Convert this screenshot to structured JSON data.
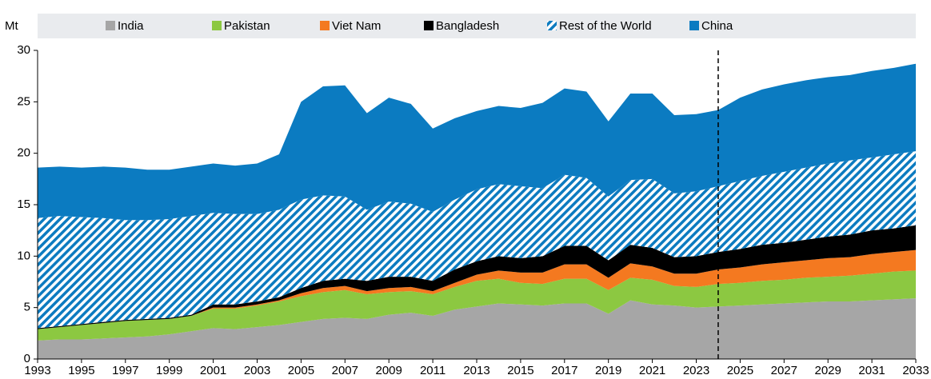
{
  "chart_data": {
    "type": "stacked_area",
    "y_label": "Mt",
    "x": [
      1993,
      1994,
      1995,
      1996,
      1997,
      1998,
      1999,
      2000,
      2001,
      2002,
      2003,
      2004,
      2005,
      2006,
      2007,
      2008,
      2009,
      2010,
      2011,
      2012,
      2013,
      2014,
      2015,
      2016,
      2017,
      2018,
      2019,
      2020,
      2021,
      2022,
      2023,
      2024,
      2025,
      2026,
      2027,
      2028,
      2029,
      2030,
      2031,
      2032,
      2033
    ],
    "xlim": [
      1993,
      2033
    ],
    "xticks": [
      1993,
      1995,
      1997,
      1999,
      2001,
      2003,
      2005,
      2007,
      2009,
      2011,
      2013,
      2015,
      2017,
      2019,
      2021,
      2023,
      2025,
      2027,
      2029,
      2031,
      2033
    ],
    "ylim": [
      0,
      30
    ],
    "yticks": [
      0,
      5,
      10,
      15,
      20,
      25,
      30
    ],
    "vline": 2024,
    "legend": "top",
    "series": [
      {
        "name": "India",
        "color": "#a6a6a6",
        "values": [
          1.8,
          1.9,
          1.9,
          2.0,
          2.1,
          2.2,
          2.4,
          2.7,
          3.0,
          2.9,
          3.1,
          3.3,
          3.6,
          3.9,
          4.0,
          3.9,
          4.3,
          4.5,
          4.2,
          4.8,
          5.1,
          5.4,
          5.3,
          5.2,
          5.4,
          5.4,
          4.4,
          5.7,
          5.3,
          5.2,
          5.0,
          5.1,
          5.2,
          5.3,
          5.4,
          5.5,
          5.6,
          5.6,
          5.7,
          5.8,
          5.9
        ]
      },
      {
        "name": "Pakistan",
        "color": "#8cc841",
        "values": [
          1.1,
          1.2,
          1.4,
          1.5,
          1.6,
          1.6,
          1.5,
          1.5,
          1.9,
          2.0,
          2.1,
          2.3,
          2.5,
          2.6,
          2.7,
          2.4,
          2.2,
          2.1,
          2.1,
          2.2,
          2.5,
          2.4,
          2.1,
          2.1,
          2.4,
          2.4,
          2.3,
          2.2,
          2.4,
          1.9,
          2.0,
          2.2,
          2.2,
          2.3,
          2.3,
          2.4,
          2.4,
          2.5,
          2.6,
          2.7,
          2.7
        ]
      },
      {
        "name": "Viet Nam",
        "color": "#f47920",
        "values": [
          0.0,
          0.0,
          0.0,
          0.0,
          0.0,
          0.0,
          0.0,
          0.0,
          0.1,
          0.1,
          0.1,
          0.1,
          0.3,
          0.4,
          0.4,
          0.3,
          0.4,
          0.4,
          0.3,
          0.4,
          0.6,
          0.8,
          1.0,
          1.1,
          1.4,
          1.4,
          1.2,
          1.4,
          1.3,
          1.2,
          1.3,
          1.4,
          1.5,
          1.6,
          1.7,
          1.7,
          1.8,
          1.8,
          1.9,
          1.9,
          2.0
        ]
      },
      {
        "name": "Bangladesh",
        "color": "#000000",
        "values": [
          0.1,
          0.1,
          0.1,
          0.1,
          0.1,
          0.1,
          0.1,
          0.1,
          0.3,
          0.3,
          0.3,
          0.3,
          0.5,
          0.7,
          0.7,
          1.0,
          1.1,
          1.0,
          1.0,
          1.3,
          1.3,
          1.4,
          1.4,
          1.6,
          1.8,
          1.8,
          1.7,
          1.8,
          1.8,
          1.6,
          1.7,
          1.7,
          1.8,
          1.9,
          1.9,
          2.0,
          2.1,
          2.2,
          2.3,
          2.3,
          2.4
        ]
      },
      {
        "name": "Rest of the World",
        "color": "#0c7bc0",
        "pattern": "hatch",
        "values": [
          10.7,
          10.7,
          10.4,
          10.1,
          9.7,
          9.6,
          9.6,
          9.6,
          8.9,
          8.8,
          8.5,
          8.5,
          8.6,
          8.3,
          8.0,
          6.9,
          7.3,
          7.1,
          6.7,
          6.8,
          7.0,
          7.0,
          7.0,
          6.6,
          6.9,
          6.6,
          6.2,
          6.3,
          6.7,
          6.2,
          6.3,
          6.4,
          6.6,
          6.7,
          6.9,
          7.0,
          7.1,
          7.2,
          7.1,
          7.2,
          7.2
        ]
      },
      {
        "name": "China",
        "color": "#0b7bc1",
        "values": [
          4.9,
          4.8,
          4.8,
          5.0,
          5.1,
          4.9,
          4.8,
          4.8,
          4.8,
          4.7,
          4.9,
          5.4,
          9.5,
          10.6,
          10.8,
          9.4,
          10.1,
          9.7,
          8.1,
          7.9,
          7.6,
          7.6,
          7.6,
          8.3,
          8.4,
          8.4,
          7.3,
          8.4,
          8.3,
          7.6,
          7.5,
          7.4,
          8.1,
          8.4,
          8.5,
          8.5,
          8.4,
          8.3,
          8.4,
          8.4,
          8.5
        ]
      }
    ]
  }
}
